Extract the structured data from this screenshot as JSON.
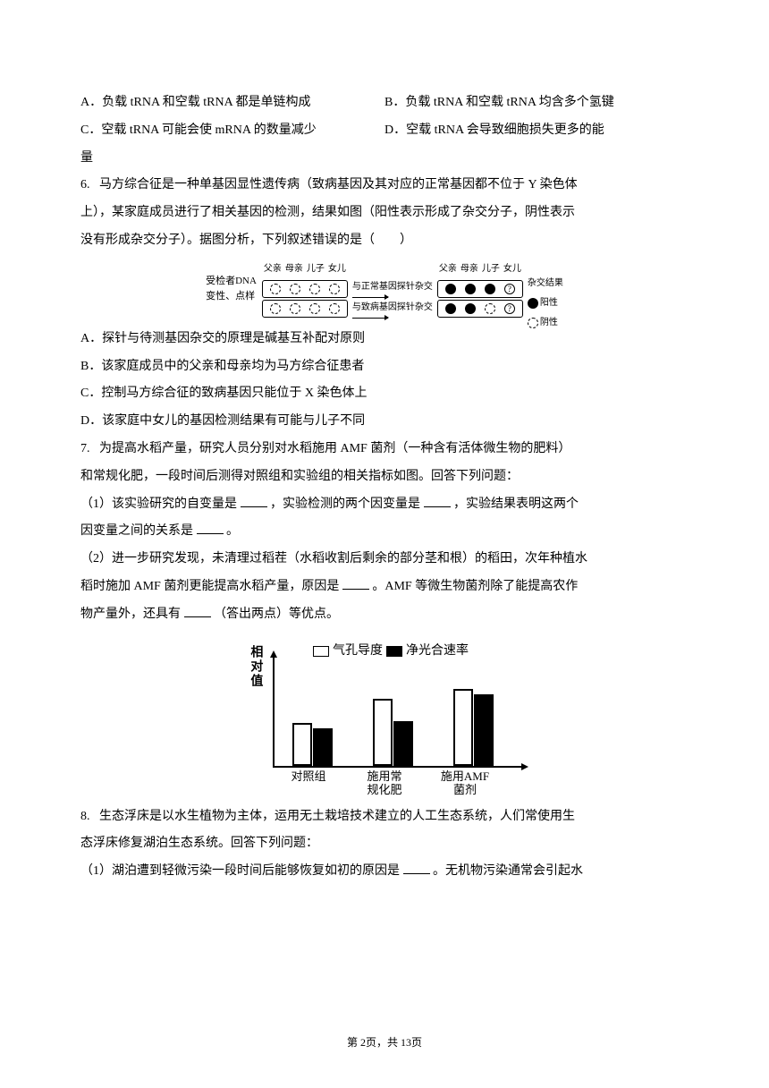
{
  "q5": {
    "optA": "A．负载 tRNA 和空载 tRNA 都是单链构成",
    "optB": "B．负载 tRNA 和空载 tRNA 均含多个氢键",
    "optC": "C．空载 tRNA 可能会使 mRNA 的数量减少",
    "optD": "D．空载 tRNA 会导致细胞损失更多的能",
    "optD_cont": "量"
  },
  "q6": {
    "num": "6.",
    "stem1": "马方综合征是一种单基因显性遗传病（致病基因及其对应的正常基因都不位于 Y 染色体",
    "stem2": "上），某家庭成员进行了相关基因的检测，结果如图（阳性表示形成了杂交分子，阴性表示",
    "stem3": "没有形成杂交分子）。据图分析，下列叙述错误的是（　　）",
    "diagram": {
      "left_label1": "受检者DNA",
      "left_label2": "变性、点样",
      "headers": [
        "父亲",
        "母亲",
        "儿子",
        "女儿"
      ],
      "mid1": "与正常基因探针杂交",
      "mid2": "与致病基因探针杂交",
      "right_title": "杂交结果",
      "right_pos": "阳性",
      "right_neg": "阴性"
    },
    "optA": "A．探针与待测基因杂交的原理是碱基互补配对原则",
    "optB": "B．该家庭成员中的父亲和母亲均为马方综合征患者",
    "optC": "C．控制马方综合征的致病基因只能位于 X 染色体上",
    "optD": "D．该家庭中女儿的基因检测结果有可能与儿子不同"
  },
  "q7": {
    "num": "7.",
    "stem1": "为提高水稻产量，研究人员分别对水稻施用 AMF 菌剂（一种含有活体微生物的肥料）",
    "stem2": "和常规化肥，一段时间后测得对照组和实验组的相关指标如图。回答下列问题：",
    "p1a": "（1）该实验研究的自变量是 ",
    "p1b": " ，实验检测的两个因变量是 ",
    "p1c": " ，实验结果表明这两个",
    "p1d": "因变量之间的关系是 ",
    "p1e": " 。",
    "p2a": "（2）进一步研究发现，未清理过稻茬（水稻收割后剩余的部分茎和根）的稻田，次年种植水",
    "p2b": "稻时施加 AMF 菌剂更能提高水稻产量，原因是 ",
    "p2c": " 。AMF 等微生物菌剂除了能提高农作",
    "p2d": "物产量外，还具有 ",
    "p2e": " （答出两点）等优点。",
    "chart": {
      "ylabel": "相对值",
      "legend1": "气孔导度",
      "legend2": "净光合速率",
      "x1": "对照组",
      "x2": "施用常规化肥",
      "x3": "施用AMF菌剂",
      "bars": {
        "g1": {
          "open": 48,
          "filled": 42
        },
        "g2": {
          "open": 75,
          "filled": 50
        },
        "g3": {
          "open": 86,
          "filled": 80
        }
      }
    }
  },
  "q8": {
    "num": "8.",
    "stem1": "生态浮床是以水生植物为主体，运用无土栽培技术建立的人工生态系统，人们常使用生",
    "stem2": "态浮床修复湖泊生态系统。回答下列问题：",
    "p1a": "（1）湖泊遭到轻微污染一段时间后能够恢复如初的原因是 ",
    "p1b": " 。无机物污染通常会引起水"
  },
  "footer": "第 2页，共 13页"
}
